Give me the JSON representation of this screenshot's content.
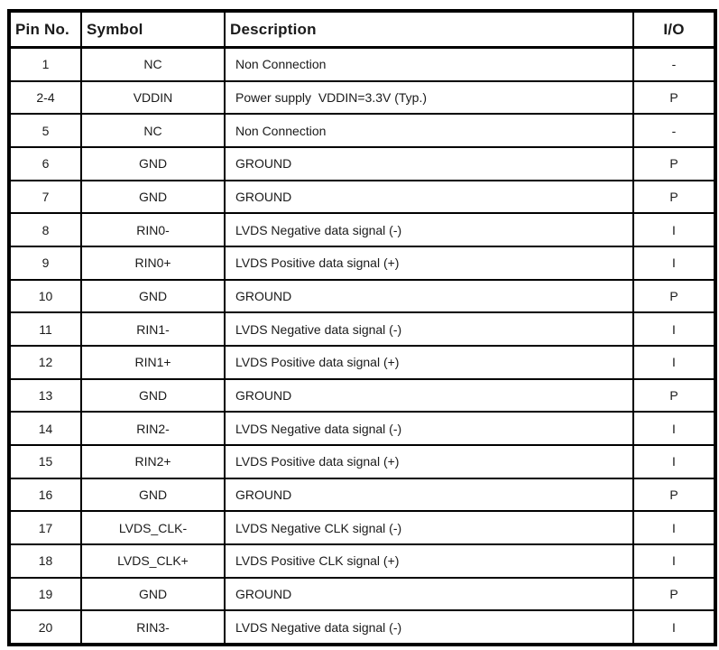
{
  "table": {
    "headers": {
      "pin_no": "Pin No.",
      "symbol": "Symbol",
      "description": "Description",
      "io": "I/O"
    },
    "rows": [
      {
        "pin": "1",
        "symbol": "NC",
        "description": "Non Connection",
        "io": "-"
      },
      {
        "pin": "2-4",
        "symbol": "VDDIN",
        "description": "Power supply  VDDIN=3.3V (Typ.)",
        "io": "P"
      },
      {
        "pin": "5",
        "symbol": "NC",
        "description": "Non Connection",
        "io": "-"
      },
      {
        "pin": "6",
        "symbol": "GND",
        "description": "GROUND",
        "io": "P"
      },
      {
        "pin": "7",
        "symbol": "GND",
        "description": "GROUND",
        "io": "P"
      },
      {
        "pin": "8",
        "symbol": "RIN0-",
        "description": "LVDS Negative data signal (-)",
        "io": "I"
      },
      {
        "pin": "9",
        "symbol": "RIN0+",
        "description": "LVDS Positive data signal (+)",
        "io": "I"
      },
      {
        "pin": "10",
        "symbol": "GND",
        "description": "GROUND",
        "io": "P"
      },
      {
        "pin": "11",
        "symbol": "RIN1-",
        "description": "LVDS Negative data signal (-)",
        "io": "I"
      },
      {
        "pin": "12",
        "symbol": "RIN1+",
        "description": "LVDS Positive data signal (+)",
        "io": "I"
      },
      {
        "pin": "13",
        "symbol": "GND",
        "description": "GROUND",
        "io": "P"
      },
      {
        "pin": "14",
        "symbol": "RIN2-",
        "description": "LVDS Negative data signal (-)",
        "io": "I"
      },
      {
        "pin": "15",
        "symbol": "RIN2+",
        "description": "LVDS Positive data signal (+)",
        "io": "I"
      },
      {
        "pin": "16",
        "symbol": "GND",
        "description": "GROUND",
        "io": "P"
      },
      {
        "pin": "17",
        "symbol": "LVDS_CLK-",
        "description": "LVDS Negative CLK signal (-)",
        "io": "I"
      },
      {
        "pin": "18",
        "symbol": "LVDS_CLK+",
        "description": "LVDS Positive CLK signal (+)",
        "io": "I"
      },
      {
        "pin": "19",
        "symbol": "GND",
        "description": "GROUND",
        "io": "P"
      },
      {
        "pin": "20",
        "symbol": "RIN3-",
        "description": "LVDS Negative data signal (-)",
        "io": "I"
      }
    ]
  },
  "colors": {
    "border": "#000000",
    "background": "#ffffff",
    "text": "#1a1a1a"
  }
}
